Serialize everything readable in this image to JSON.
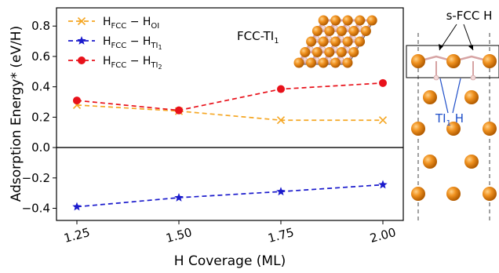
{
  "chart_data": {
    "type": "line",
    "xlabel": "H Coverage (ML)",
    "ylabel": "Adsorption Energy* (eV/H)",
    "xlim": [
      1.2,
      2.05
    ],
    "ylim": [
      -0.48,
      0.92
    ],
    "xticks": [
      1.25,
      1.5,
      1.75,
      2.0
    ],
    "xtick_labels": [
      "1.25",
      "1.50",
      "1.75",
      "2.00"
    ],
    "yticks": [
      -0.4,
      -0.2,
      0.0,
      0.2,
      0.4,
      0.6,
      0.8
    ],
    "ytick_labels": [
      "−0.4",
      "−0.2",
      "0.0",
      "0.2",
      "0.4",
      "0.6",
      "0.8"
    ],
    "reference_line": 0.0,
    "legend_position": "upper-left",
    "x": [
      1.25,
      1.5,
      1.75,
      2.0
    ],
    "series": [
      {
        "name_main": "H",
        "name_sub1": "FCC",
        "name_mid": " − H",
        "name_sub2": "OI",
        "name_sub3": "",
        "color": "#f5a623",
        "marker": "x",
        "values": [
          0.28,
          0.24,
          0.18,
          0.18
        ]
      },
      {
        "name_main": "H",
        "name_sub1": "FCC",
        "name_mid": " − H",
        "name_sub2": "TI",
        "name_sub3": "1",
        "color": "#1a1acc",
        "marker": "star",
        "values": [
          -0.39,
          -0.33,
          -0.29,
          -0.245
        ]
      },
      {
        "name_main": "H",
        "name_sub1": "FCC",
        "name_mid": " − H",
        "name_sub2": "TI",
        "name_sub3": "2",
        "color": "#e8111a",
        "marker": "circle",
        "values": [
          0.31,
          0.245,
          0.385,
          0.425
        ]
      }
    ],
    "inset_label": {
      "main": "FCC-TI",
      "sub": "1"
    },
    "side_labels": {
      "top": "s-FCC H",
      "bottom_main": "TI",
      "bottom_sub": "1",
      "bottom_suffix": " H"
    }
  },
  "colors": {
    "atom_fill": "#e3820f",
    "atom_highlight": "#ffd28a",
    "bond": "#d6a3a3",
    "hydrogen": "#f1d8d8",
    "annotation_blue": "#1f4fc9"
  }
}
